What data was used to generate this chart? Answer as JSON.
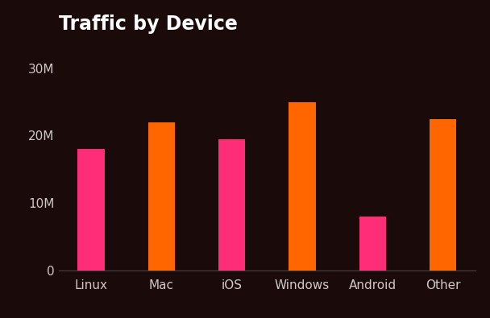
{
  "title": "Traffic by Device",
  "categories": [
    "Linux",
    "Mac",
    "iOS",
    "Windows",
    "Android",
    "Other"
  ],
  "values": [
    18000000,
    22000000,
    19500000,
    25000000,
    8000000,
    22500000
  ],
  "bar_colors": [
    "#ff2d78",
    "#ff6600",
    "#ff2d78",
    "#ff6600",
    "#ff2d78",
    "#ff6600"
  ],
  "background_color": "#1a0a0a",
  "text_color": "#d0c8c8",
  "axis_line_color": "#444444",
  "ytick_labels": [
    "0",
    "10M",
    "20M",
    "30M"
  ],
  "ytick_values": [
    0,
    10000000,
    20000000,
    30000000
  ],
  "ylim": [
    0,
    34000000
  ],
  "title_fontsize": 17,
  "tick_fontsize": 11,
  "bar_width": 0.38,
  "figsize": [
    6.08,
    3.95
  ],
  "dpi": 100
}
